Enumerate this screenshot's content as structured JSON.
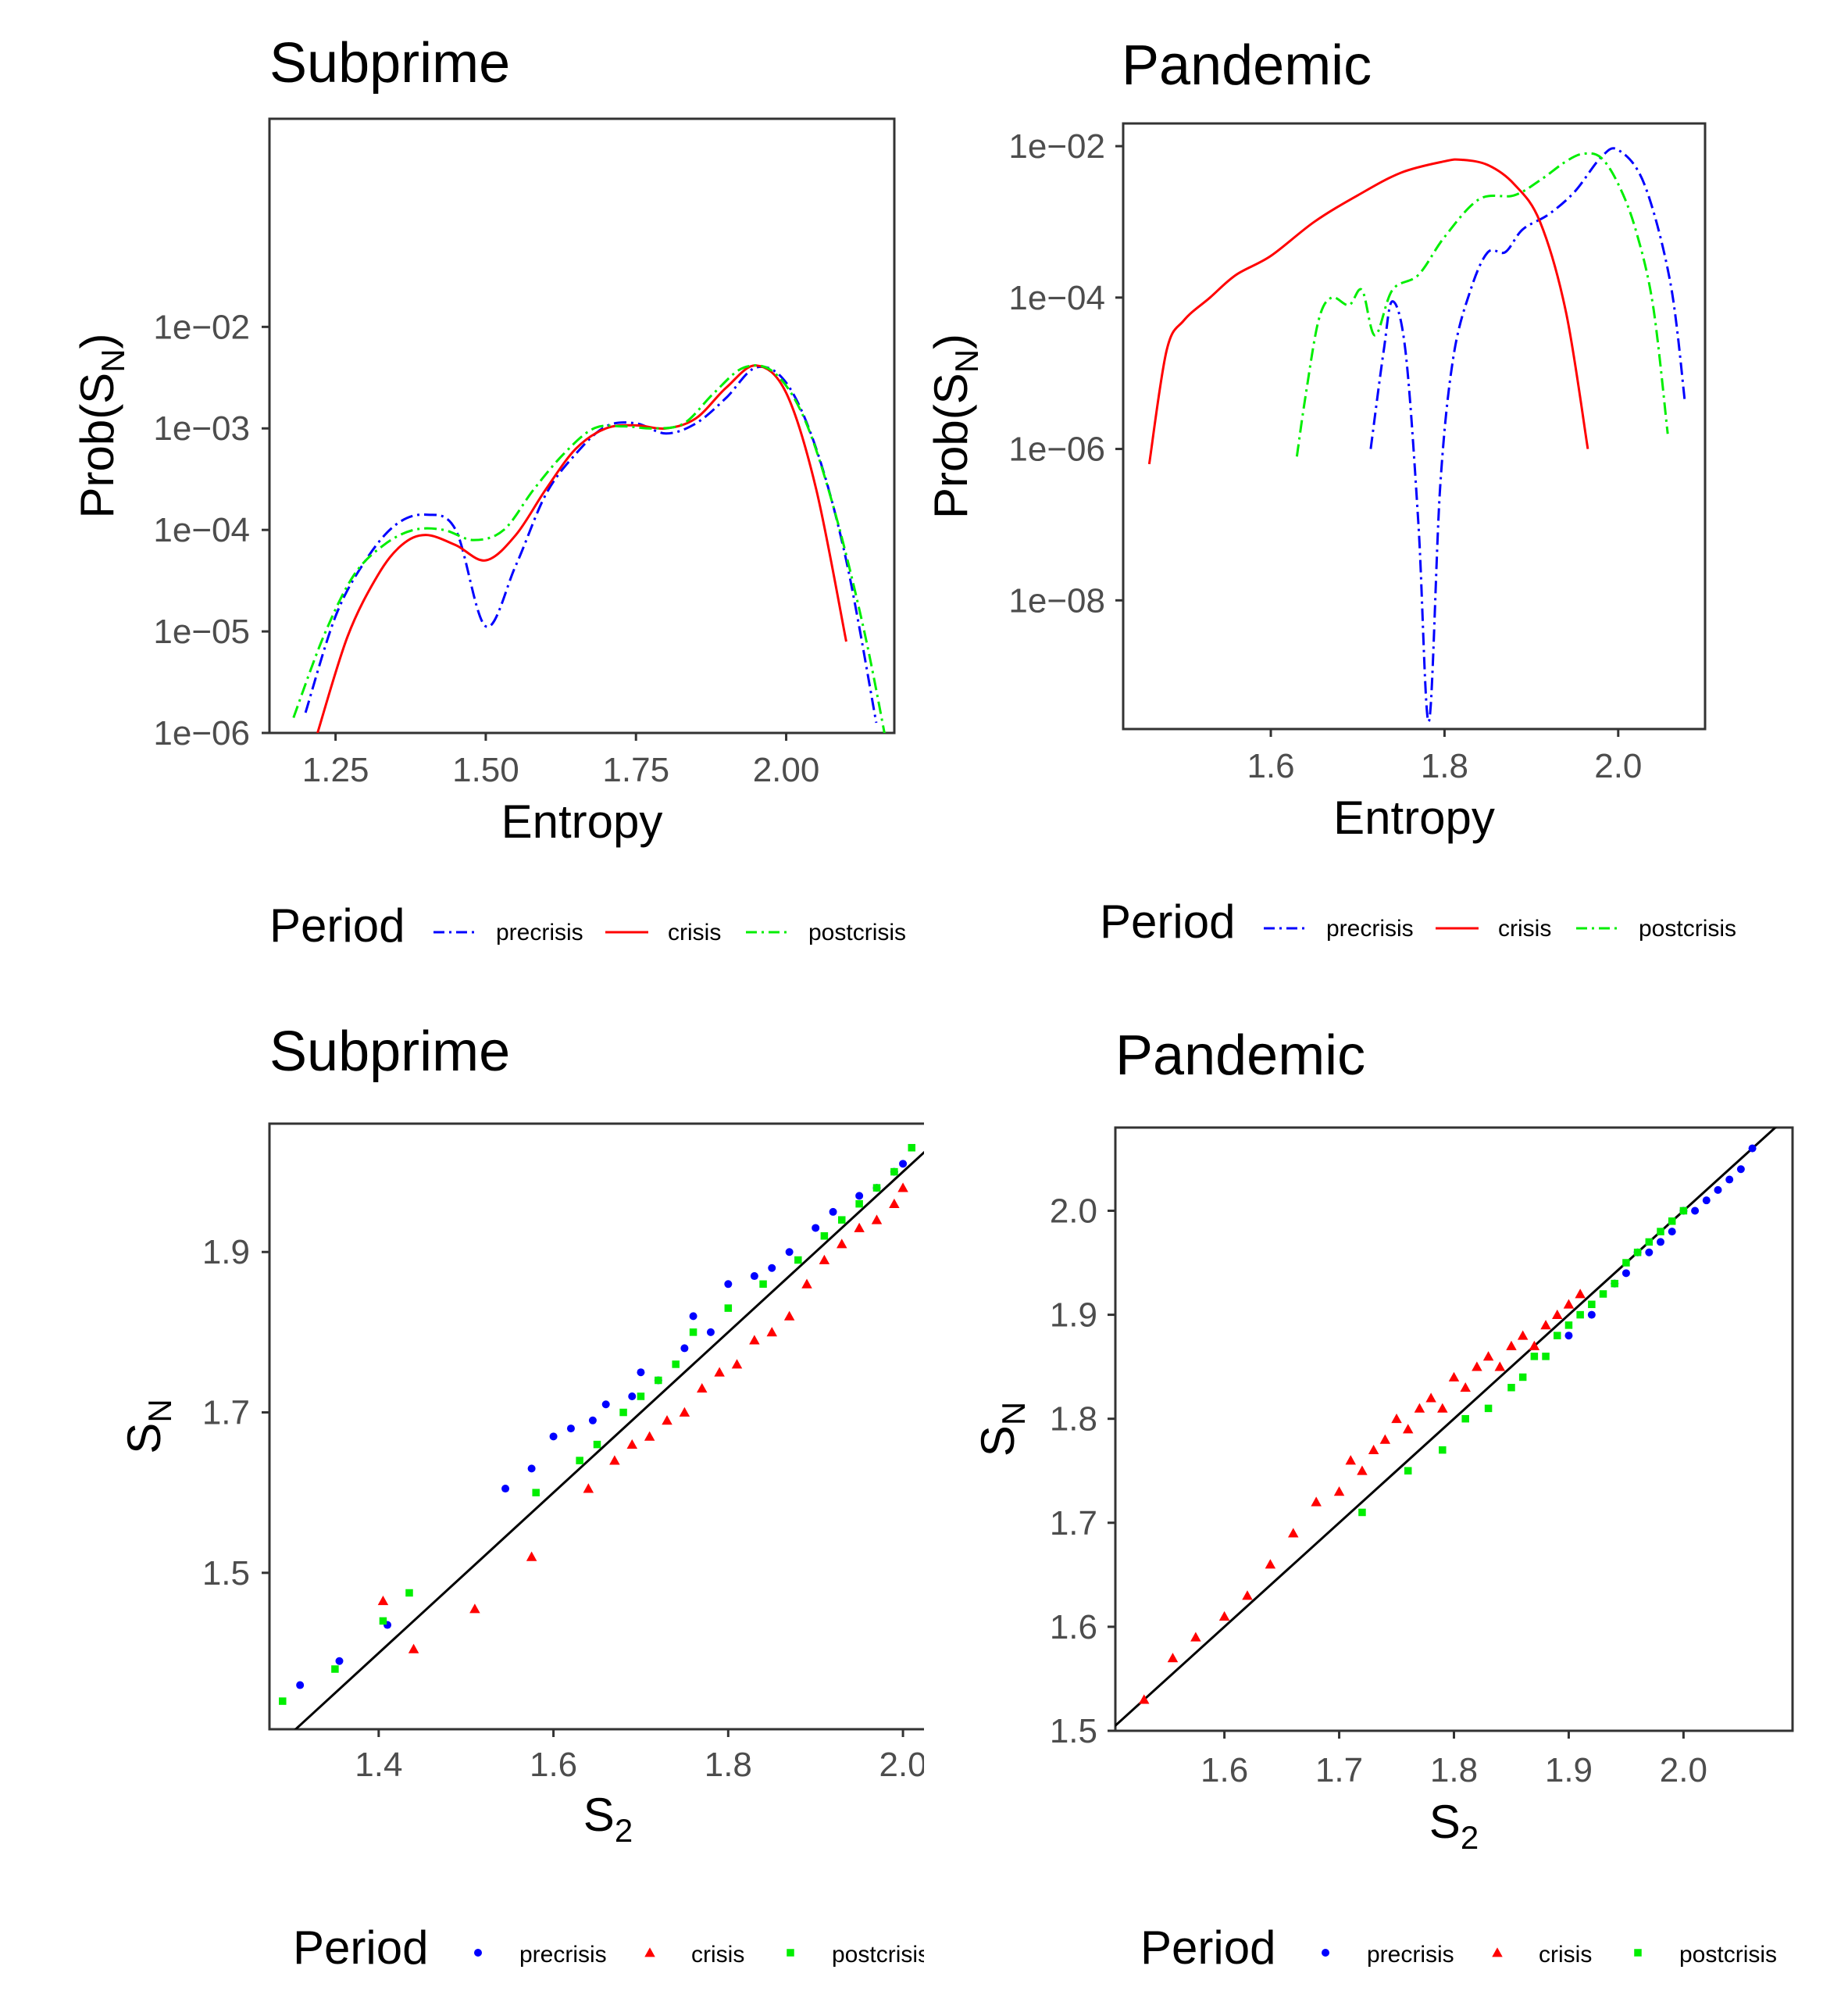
{
  "legend": {
    "title": "Period",
    "items": [
      {
        "key": "precrisis",
        "label": "precrisis",
        "color": "#0000ff",
        "dash": "dashdot",
        "marker": "circle"
      },
      {
        "key": "crisis",
        "label": "crisis",
        "color": "#ff0000",
        "dash": "solid",
        "marker": "triangle"
      },
      {
        "key": "postcrisis",
        "label": "postcrisis",
        "color": "#00ee00",
        "dash": "dashdot",
        "marker": "square"
      }
    ]
  },
  "chart_data": [
    {
      "type": "line",
      "title": "Subprime",
      "xlabel": "Entropy",
      "ylabel": "Prob(S",
      "ylabel_sub": "N",
      "ylabel_end": ")",
      "yscale": "log",
      "xlim": [
        1.14,
        2.18
      ],
      "ylim": [
        -6,
        0.05
      ],
      "xticks": [
        1.25,
        1.5,
        1.75,
        2.0
      ],
      "xtick_labels": [
        "1.25",
        "1.50",
        "1.75",
        "2.00"
      ],
      "yticks": [
        -6,
        -5,
        -4,
        -3,
        -2
      ],
      "ytick_labels": [
        "1e−06",
        "1e−05",
        "1e−04",
        "1e−03",
        "1e−02"
      ],
      "series": [
        {
          "name": "precrisis",
          "x": [
            1.2,
            1.25,
            1.3,
            1.35,
            1.4,
            1.45,
            1.5,
            1.55,
            1.6,
            1.65,
            1.7,
            1.75,
            1.8,
            1.85,
            1.9,
            1.95,
            2.0,
            2.05,
            2.1,
            2.15
          ],
          "y": [
            -5.8,
            -4.85,
            -4.3,
            -3.95,
            -3.85,
            -4.0,
            -4.95,
            -4.35,
            -3.65,
            -3.25,
            -2.98,
            -2.95,
            -3.05,
            -2.95,
            -2.7,
            -2.4,
            -2.55,
            -3.2,
            -4.3,
            -5.9
          ]
        },
        {
          "name": "crisis",
          "x": [
            1.22,
            1.27,
            1.32,
            1.36,
            1.4,
            1.45,
            1.5,
            1.55,
            1.6,
            1.65,
            1.7,
            1.75,
            1.8,
            1.85,
            1.9,
            1.95,
            2.0,
            2.05,
            2.1
          ],
          "y": [
            -6.0,
            -5.05,
            -4.45,
            -4.15,
            -4.05,
            -4.15,
            -4.3,
            -4.05,
            -3.6,
            -3.2,
            -3.0,
            -2.97,
            -3.0,
            -2.9,
            -2.6,
            -2.38,
            -2.65,
            -3.6,
            -5.1
          ]
        },
        {
          "name": "postcrisis",
          "x": [
            1.18,
            1.23,
            1.28,
            1.33,
            1.38,
            1.43,
            1.48,
            1.53,
            1.58,
            1.63,
            1.68,
            1.73,
            1.78,
            1.83,
            1.88,
            1.93,
            1.98,
            2.03,
            2.08,
            2.13,
            2.17
          ],
          "y": [
            -5.85,
            -5.05,
            -4.45,
            -4.15,
            -4.0,
            -4.0,
            -4.1,
            -4.0,
            -3.6,
            -3.25,
            -3.0,
            -2.98,
            -3.0,
            -2.95,
            -2.65,
            -2.4,
            -2.45,
            -2.9,
            -3.8,
            -5.0,
            -6.2
          ]
        }
      ]
    },
    {
      "type": "line",
      "title": "Pandemic",
      "xlabel": "Entropy",
      "ylabel": "Prob(S",
      "ylabel_sub": "N",
      "ylabel_end": ")",
      "yscale": "log",
      "xlim": [
        1.43,
        2.1
      ],
      "ylim": [
        -9.7,
        -1.7
      ],
      "xticks": [
        1.6,
        1.8,
        2.0
      ],
      "xtick_labels": [
        "1.6",
        "1.8",
        "2.0"
      ],
      "yticks": [
        -8,
        -6,
        -4,
        -2
      ],
      "ytick_labels": [
        "1e−08",
        "1e−06",
        "1e−04",
        "1e−02"
      ],
      "series": [
        {
          "name": "precrisis",
          "x": [
            1.715,
            1.73,
            1.74,
            1.755,
            1.77,
            1.782,
            1.795,
            1.81,
            1.83,
            1.85,
            1.87,
            1.89,
            1.92,
            1.95,
            1.98,
            2.0,
            2.03,
            2.06,
            2.077
          ],
          "y": [
            -6.0,
            -4.7,
            -4.05,
            -4.7,
            -7.0,
            -9.6,
            -6.5,
            -4.8,
            -3.9,
            -3.4,
            -3.4,
            -3.1,
            -2.9,
            -2.6,
            -2.15,
            -2.05,
            -2.5,
            -3.8,
            -5.4
          ]
        },
        {
          "name": "crisis",
          "x": [
            1.46,
            1.48,
            1.5,
            1.53,
            1.56,
            1.6,
            1.65,
            1.7,
            1.75,
            1.8,
            1.82,
            1.85,
            1.88,
            1.91,
            1.94,
            1.965
          ],
          "y": [
            -6.2,
            -4.7,
            -4.3,
            -4.0,
            -3.7,
            -3.45,
            -3.0,
            -2.65,
            -2.35,
            -2.2,
            -2.18,
            -2.25,
            -2.5,
            -3.0,
            -4.2,
            -6.0
          ]
        },
        {
          "name": "postcrisis",
          "x": [
            1.63,
            1.64,
            1.655,
            1.67,
            1.69,
            1.705,
            1.72,
            1.74,
            1.77,
            1.8,
            1.84,
            1.88,
            1.91,
            1.94,
            1.96,
            1.98,
            2.0,
            2.02,
            2.04,
            2.057
          ],
          "y": [
            -6.1,
            -5.3,
            -4.3,
            -4.0,
            -4.1,
            -3.9,
            -4.5,
            -3.9,
            -3.7,
            -3.2,
            -2.7,
            -2.65,
            -2.45,
            -2.2,
            -2.1,
            -2.15,
            -2.5,
            -3.1,
            -4.1,
            -5.8
          ]
        }
      ]
    },
    {
      "type": "scatter",
      "title": "Subprime",
      "xlabel": "S",
      "xlabel_sub": "2",
      "ylabel": "S",
      "ylabel_sub": "N",
      "xlim": [
        1.275,
        2.05
      ],
      "ylim": [
        1.305,
        2.06
      ],
      "xticks": [
        1.4,
        1.6,
        1.8,
        2.0
      ],
      "xtick_labels": [
        "1.4",
        "1.6",
        "1.8",
        "2.0"
      ],
      "yticks": [
        1.5,
        1.7,
        1.9
      ],
      "ytick_labels": [
        "1.5",
        "1.7",
        "1.9"
      ],
      "reference_line": "y = x",
      "series": [
        {
          "name": "precrisis",
          "x": [
            1.31,
            1.355,
            1.41,
            1.545,
            1.575,
            1.6,
            1.62,
            1.645,
            1.66,
            1.69,
            1.7,
            1.72,
            1.75,
            1.76,
            1.78,
            1.8,
            1.83,
            1.85,
            1.87,
            1.9,
            1.92,
            1.95,
            1.97,
            1.99,
            2.0
          ],
          "y": [
            1.36,
            1.39,
            1.435,
            1.605,
            1.63,
            1.67,
            1.68,
            1.69,
            1.71,
            1.72,
            1.75,
            1.74,
            1.78,
            1.82,
            1.8,
            1.86,
            1.87,
            1.88,
            1.9,
            1.93,
            1.95,
            1.97,
            1.98,
            2.0,
            2.01
          ]
        },
        {
          "name": "crisis",
          "x": [
            1.405,
            1.44,
            1.51,
            1.575,
            1.64,
            1.67,
            1.69,
            1.71,
            1.73,
            1.75,
            1.77,
            1.79,
            1.81,
            1.83,
            1.85,
            1.87,
            1.89,
            1.91,
            1.93,
            1.95,
            1.97,
            1.99,
            2.0
          ],
          "y": [
            1.465,
            1.405,
            1.455,
            1.52,
            1.605,
            1.64,
            1.66,
            1.67,
            1.69,
            1.7,
            1.73,
            1.75,
            1.76,
            1.79,
            1.8,
            1.82,
            1.86,
            1.89,
            1.91,
            1.93,
            1.94,
            1.96,
            1.98
          ]
        },
        {
          "name": "postcrisis",
          "x": [
            1.29,
            1.35,
            1.405,
            1.435,
            1.58,
            1.63,
            1.65,
            1.68,
            1.7,
            1.72,
            1.74,
            1.76,
            1.8,
            1.84,
            1.88,
            1.91,
            1.93,
            1.95,
            1.97,
            1.99,
            2.01
          ],
          "y": [
            1.34,
            1.38,
            1.44,
            1.475,
            1.6,
            1.64,
            1.66,
            1.7,
            1.72,
            1.74,
            1.76,
            1.8,
            1.83,
            1.86,
            1.89,
            1.92,
            1.94,
            1.96,
            1.98,
            2.0,
            2.03
          ]
        }
      ]
    },
    {
      "type": "scatter",
      "title": "Pandemic",
      "xlabel": "S",
      "xlabel_sub": "2",
      "ylabel": "S",
      "ylabel_sub": "N",
      "xlim": [
        1.505,
        2.095
      ],
      "ylim": [
        1.5,
        2.08
      ],
      "xticks": [
        1.6,
        1.7,
        1.8,
        1.9,
        2.0
      ],
      "xtick_labels": [
        "1.6",
        "1.7",
        "1.8",
        "1.9",
        "2.0"
      ],
      "yticks": [
        1.5,
        1.6,
        1.7,
        1.8,
        1.9,
        2.0
      ],
      "ytick_labels": [
        "1.5",
        "1.6",
        "1.7",
        "1.8",
        "1.9",
        "2.0"
      ],
      "reference_line": "y = x",
      "series": [
        {
          "name": "precrisis",
          "x": [
            1.9,
            1.92,
            1.94,
            1.95,
            1.96,
            1.97,
            1.98,
            1.99,
            2.0,
            2.01,
            2.02,
            2.03,
            2.04,
            2.05,
            2.06
          ],
          "y": [
            1.88,
            1.9,
            1.93,
            1.94,
            1.96,
            1.96,
            1.97,
            1.98,
            2.0,
            2.0,
            2.01,
            2.02,
            2.03,
            2.04,
            2.06
          ]
        },
        {
          "name": "crisis",
          "x": [
            1.53,
            1.555,
            1.575,
            1.6,
            1.62,
            1.64,
            1.66,
            1.68,
            1.7,
            1.71,
            1.72,
            1.73,
            1.74,
            1.75,
            1.76,
            1.77,
            1.78,
            1.79,
            1.8,
            1.81,
            1.82,
            1.83,
            1.84,
            1.85,
            1.86,
            1.87,
            1.88,
            1.89,
            1.9,
            1.91
          ],
          "y": [
            1.53,
            1.57,
            1.59,
            1.61,
            1.63,
            1.66,
            1.69,
            1.72,
            1.73,
            1.76,
            1.75,
            1.77,
            1.78,
            1.8,
            1.79,
            1.81,
            1.82,
            1.81,
            1.84,
            1.83,
            1.85,
            1.86,
            1.85,
            1.87,
            1.88,
            1.87,
            1.89,
            1.9,
            1.91,
            1.92
          ]
        },
        {
          "name": "postcrisis",
          "x": [
            1.72,
            1.76,
            1.79,
            1.81,
            1.83,
            1.85,
            1.86,
            1.87,
            1.88,
            1.89,
            1.9,
            1.91,
            1.92,
            1.93,
            1.94,
            1.95,
            1.96,
            1.97,
            1.98,
            1.99,
            2.0
          ],
          "y": [
            1.71,
            1.75,
            1.77,
            1.8,
            1.81,
            1.83,
            1.84,
            1.86,
            1.86,
            1.88,
            1.89,
            1.9,
            1.91,
            1.92,
            1.93,
            1.95,
            1.96,
            1.97,
            1.98,
            1.99,
            2.0
          ]
        }
      ]
    }
  ]
}
